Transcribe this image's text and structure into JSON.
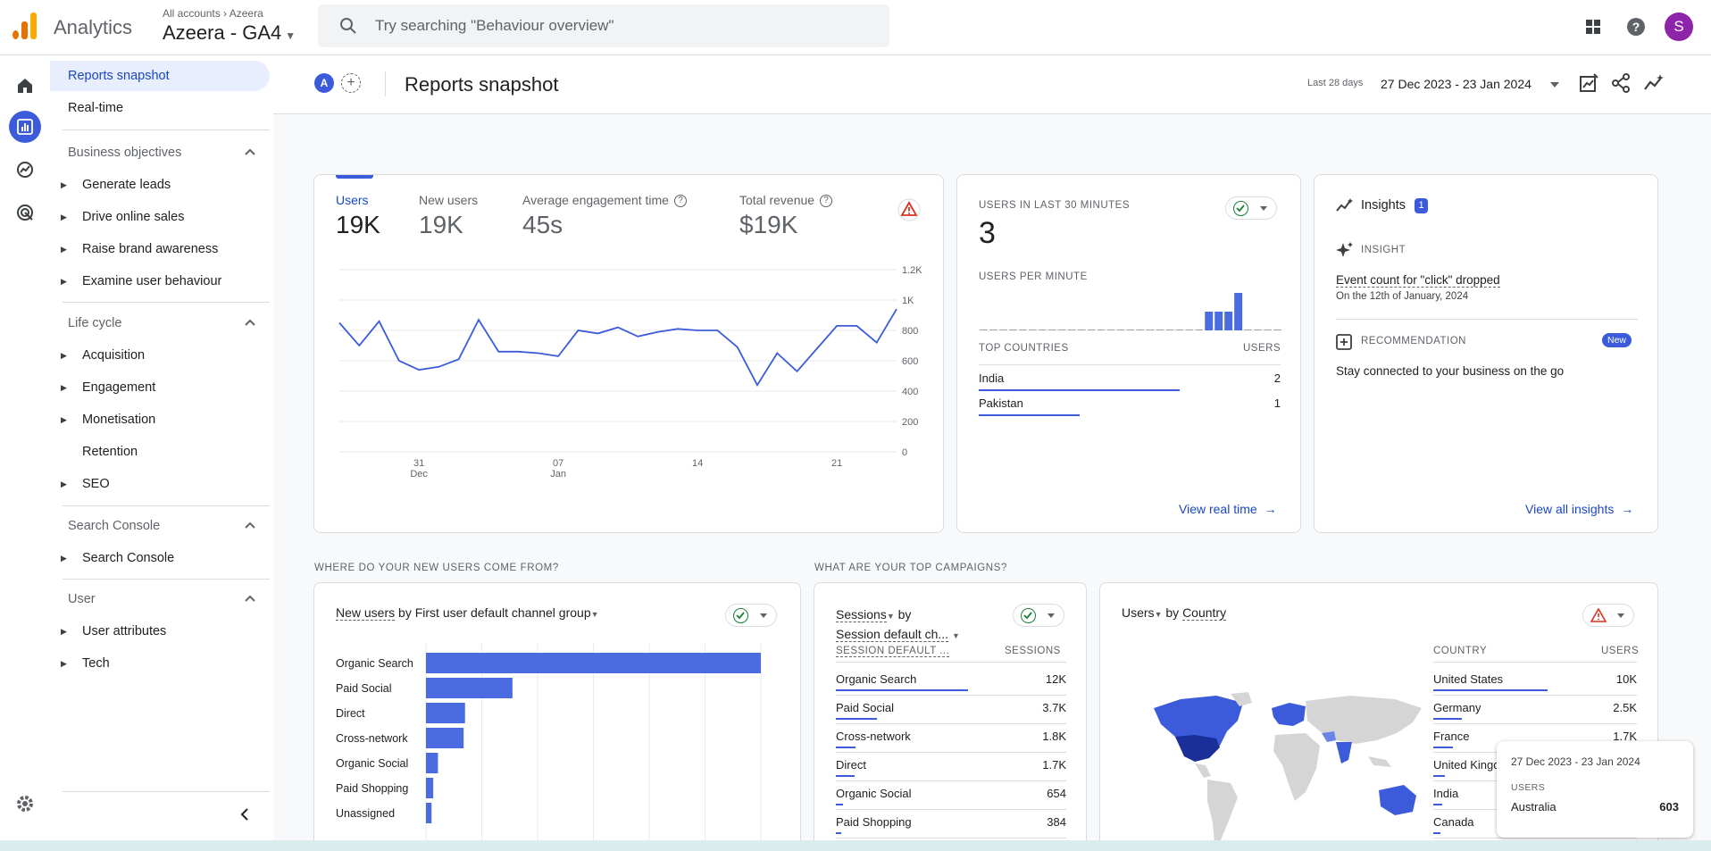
{
  "app": {
    "brand": "Analytics",
    "breadcrumb_root": "All accounts",
    "breadcrumb_account": "Azeera",
    "property_name": "Azeera - GA4",
    "avatar_letter": "S",
    "search_placeholder": "Try searching \"Behaviour overview\""
  },
  "sidenav": {
    "top_items": [
      "Reports snapshot",
      "Real-time"
    ],
    "sections": [
      {
        "title": "Business objectives",
        "items": [
          "Generate leads",
          "Drive online sales",
          "Raise brand awareness",
          "Examine user behaviour"
        ]
      },
      {
        "title": "Life cycle",
        "items": [
          "Acquisition",
          "Engagement",
          "Monetisation",
          "Retention",
          "SEO"
        ]
      },
      {
        "title": "Search Console",
        "items": [
          "Search Console"
        ]
      },
      {
        "title": "User",
        "items": [
          "User attributes",
          "Tech"
        ]
      }
    ]
  },
  "header": {
    "compare_letter": "A",
    "title": "Reports snapshot",
    "date_label": "Last 28 days",
    "date_range": "27 Dec 2023 - 23 Jan 2024"
  },
  "overview": {
    "metrics": [
      {
        "label": "Users",
        "value": "19K"
      },
      {
        "label": "New users",
        "value": "19K"
      },
      {
        "label": "Average engagement time",
        "value": "45s"
      },
      {
        "label": "Total revenue",
        "value": "$19K"
      }
    ],
    "chart_data": {
      "type": "line",
      "title": "Users",
      "y_ticks": [
        "1.2K",
        "1K",
        "800",
        "600",
        "400",
        "200",
        "0"
      ],
      "x_ticks": [
        {
          "day": "31",
          "month": "Dec"
        },
        {
          "day": "07",
          "month": "Jan"
        },
        {
          "day": "14",
          "month": ""
        },
        {
          "day": "21",
          "month": ""
        }
      ],
      "ylim": [
        0,
        1200
      ],
      "values": [
        850,
        700,
        860,
        600,
        540,
        560,
        610,
        870,
        660,
        660,
        650,
        630,
        800,
        780,
        820,
        760,
        790,
        810,
        800,
        800,
        690,
        440,
        650,
        530,
        680,
        830,
        830,
        720,
        940
      ]
    }
  },
  "realtime": {
    "users_label": "USERS IN LAST 30 MINUTES",
    "users_value": "3",
    "per_minute_label": "USERS PER MINUTE",
    "per_minute_values": [
      0,
      0,
      0,
      0,
      0,
      0,
      0,
      0,
      0,
      0,
      0,
      0,
      0,
      0,
      0,
      0,
      0,
      0,
      0,
      0,
      0,
      0,
      0,
      1,
      1,
      1,
      2,
      0,
      0,
      0,
      0
    ],
    "countries_header": "TOP COUNTRIES",
    "users_header": "USERS",
    "countries": [
      {
        "name": "India",
        "value": "2",
        "ratio": 1.0
      },
      {
        "name": "Pakistan",
        "value": "1",
        "ratio": 0.5
      }
    ],
    "link": "View real time"
  },
  "insights": {
    "title": "Insights",
    "count": "1",
    "insight_label": "INSIGHT",
    "insight_text": "Event count for \"click\" dropped",
    "insight_sub": "On the 12th of January, 2024",
    "recommendation_label": "RECOMMENDATION",
    "badge_new": "New",
    "recommendation_text": "Stay connected to your business on the go",
    "link": "View all insights"
  },
  "new_users": {
    "section_title": "WHERE DO YOUR NEW USERS COME FROM?",
    "title_metric": "New users",
    "title_by": "by",
    "title_dim": "First user default channel group",
    "chart_data": {
      "type": "bar",
      "orientation": "horizontal",
      "categories": [
        "Organic Search",
        "Paid Social",
        "Direct",
        "Cross-network",
        "Organic Social",
        "Paid Shopping",
        "Unassigned"
      ],
      "values": [
        12000,
        3100,
        1400,
        1350,
        430,
        260,
        200
      ],
      "xlim": [
        0,
        12000
      ]
    }
  },
  "campaigns": {
    "section_title": "WHAT ARE YOUR TOP CAMPAIGNS?",
    "title_metric": "Sessions",
    "title_by": "by",
    "title_dim": "Session default ch...",
    "col1": "SESSION DEFAULT ...",
    "col2": "SESSIONS",
    "rows": [
      {
        "name": "Organic Search",
        "value": "12K",
        "ratio": 1.0
      },
      {
        "name": "Paid Social",
        "value": "3.7K",
        "ratio": 0.31
      },
      {
        "name": "Cross-network",
        "value": "1.8K",
        "ratio": 0.15
      },
      {
        "name": "Direct",
        "value": "1.7K",
        "ratio": 0.14
      },
      {
        "name": "Organic Social",
        "value": "654",
        "ratio": 0.055
      },
      {
        "name": "Paid Shopping",
        "value": "384",
        "ratio": 0.032
      }
    ]
  },
  "countries": {
    "title_metric": "Users",
    "title_by": "by",
    "title_dim": "Country",
    "col1": "COUNTRY",
    "col2": "USERS",
    "rows": [
      {
        "name": "United States",
        "value": "10K",
        "ratio": 1.0
      },
      {
        "name": "Germany",
        "value": "2.5K",
        "ratio": 0.25
      },
      {
        "name": "France",
        "value": "1.7K",
        "ratio": 0.17
      },
      {
        "name": "United Kingdom",
        "value": "",
        "ratio": 0.1
      },
      {
        "name": "India",
        "value": "",
        "ratio": 0.08
      },
      {
        "name": "Canada",
        "value": "",
        "ratio": 0.06
      }
    ],
    "tooltip": {
      "date": "27 Dec 2023 - 23 Jan 2024",
      "metric": "USERS",
      "country": "Australia",
      "value": "603"
    }
  },
  "colors": {
    "accent": "#3b5bdb",
    "link": "#1a47c7",
    "bar": "#4a6ce0",
    "map_fill": "#3b5bdb",
    "map_base": "#d5d5d5"
  }
}
